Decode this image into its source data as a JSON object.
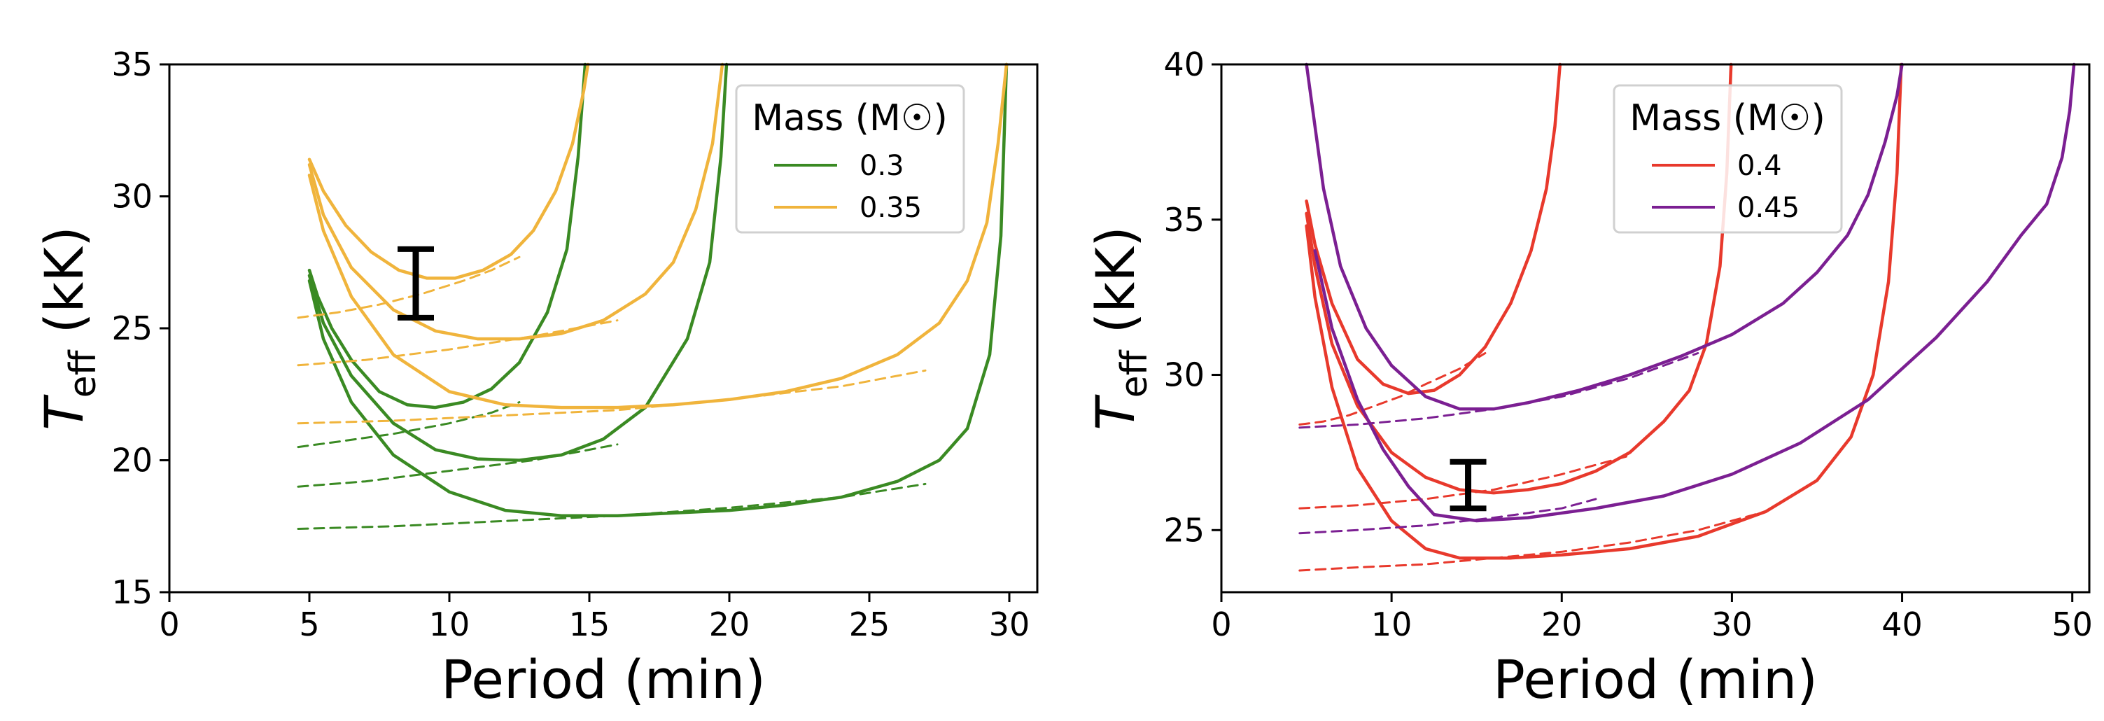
{
  "chart_data": [
    {
      "type": "line",
      "panel": "left",
      "title": "",
      "xlabel": "Period (min)",
      "ylabel": "T_eff (kK)",
      "xlim": [
        0,
        31
      ],
      "ylim": [
        15,
        35
      ],
      "xticks": [
        "0",
        "5",
        "10",
        "15",
        "20",
        "25",
        "30"
      ],
      "yticks": [
        "15",
        "20",
        "25",
        "30",
        "35"
      ],
      "legend": {
        "title": "Mass (M☉)",
        "location": "top-right",
        "entries": [
          {
            "label": "0.3",
            "color": "#3a8a23"
          },
          {
            "label": "0.35",
            "color": "#f0b43c"
          }
        ]
      },
      "series": [
        {
          "name": "0.3",
          "style": "solid",
          "color": "#3a8a23",
          "x": [
            5,
            5.3,
            5.8,
            6.5,
            7.5,
            8.5,
            9.5,
            10.5,
            11.5,
            12.5,
            13.5,
            14.2,
            14.6,
            14.85
          ],
          "y": [
            27.2,
            26.2,
            25.0,
            23.8,
            22.6,
            22.1,
            22.0,
            22.2,
            22.7,
            23.7,
            25.6,
            28.0,
            31.5,
            35.0
          ]
        },
        {
          "name": "0.3",
          "style": "solid",
          "color": "#3a8a23",
          "x": [
            5,
            5.5,
            6.5,
            8,
            9.5,
            11,
            12.5,
            14,
            15.5,
            17,
            18.5,
            19.3,
            19.7,
            19.9
          ],
          "y": [
            27.0,
            25.2,
            23.2,
            21.4,
            20.4,
            20.05,
            20.0,
            20.2,
            20.8,
            22.0,
            24.6,
            27.5,
            31.5,
            35.0
          ]
        },
        {
          "name": "0.3",
          "style": "solid",
          "color": "#3a8a23",
          "x": [
            5,
            5.5,
            6.5,
            8,
            10,
            12,
            14,
            16,
            18,
            20,
            22,
            24,
            26,
            27.5,
            28.5,
            29.3,
            29.7,
            29.9
          ],
          "y": [
            26.8,
            24.6,
            22.2,
            20.2,
            18.8,
            18.1,
            17.9,
            17.9,
            18.0,
            18.1,
            18.3,
            18.6,
            19.2,
            20.0,
            21.2,
            24.0,
            28.5,
            35.0
          ]
        },
        {
          "name": "0.3",
          "style": "dashed",
          "color": "#3a8a23",
          "x": [
            4.6,
            6,
            8,
            10,
            11.5,
            12.5
          ],
          "y": [
            20.5,
            20.7,
            21.0,
            21.4,
            21.8,
            22.2
          ]
        },
        {
          "name": "0.3",
          "style": "dashed",
          "color": "#3a8a23",
          "x": [
            4.6,
            7,
            10,
            13,
            16
          ],
          "y": [
            19.0,
            19.2,
            19.6,
            20.0,
            20.6
          ]
        },
        {
          "name": "0.3",
          "style": "dashed",
          "color": "#3a8a23",
          "x": [
            4.6,
            8,
            12,
            16,
            20,
            24,
            27
          ],
          "y": [
            17.4,
            17.5,
            17.7,
            17.9,
            18.2,
            18.6,
            19.1
          ]
        },
        {
          "name": "0.35",
          "style": "solid",
          "color": "#f0b43c",
          "x": [
            5,
            5.5,
            6.3,
            7.2,
            8.2,
            9.2,
            10.2,
            11.2,
            12.2,
            13,
            13.8,
            14.4,
            14.8,
            14.95
          ],
          "y": [
            31.4,
            30.2,
            28.9,
            27.9,
            27.2,
            26.9,
            26.9,
            27.2,
            27.8,
            28.7,
            30.2,
            32.0,
            34.0,
            35.0
          ]
        },
        {
          "name": "0.35",
          "style": "solid",
          "color": "#f0b43c",
          "x": [
            5,
            5.5,
            6.5,
            8,
            9.5,
            11,
            12.5,
            14,
            15.5,
            17,
            18,
            18.8,
            19.4,
            19.75
          ],
          "y": [
            31.2,
            29.3,
            27.3,
            25.7,
            24.9,
            24.6,
            24.6,
            24.8,
            25.3,
            26.3,
            27.5,
            29.5,
            32.0,
            35.0
          ]
        },
        {
          "name": "0.35",
          "style": "solid",
          "color": "#f0b43c",
          "x": [
            5,
            5.5,
            6.5,
            8,
            10,
            12,
            14,
            16,
            18,
            20,
            22,
            24,
            26,
            27.5,
            28.5,
            29.2,
            29.6,
            29.9
          ],
          "y": [
            30.8,
            28.7,
            26.2,
            24.0,
            22.6,
            22.1,
            22.0,
            22.0,
            22.1,
            22.3,
            22.6,
            23.1,
            24.0,
            25.2,
            26.8,
            29.0,
            32.0,
            35.0
          ]
        },
        {
          "name": "0.35",
          "style": "dashed",
          "color": "#f0b43c",
          "x": [
            4.6,
            6,
            7.5,
            9,
            10.5,
            11.5,
            12.5
          ],
          "y": [
            25.4,
            25.6,
            25.9,
            26.3,
            26.8,
            27.2,
            27.7
          ]
        },
        {
          "name": "0.35",
          "style": "dashed",
          "color": "#f0b43c",
          "x": [
            4.6,
            7,
            10,
            13,
            16
          ],
          "y": [
            23.6,
            23.8,
            24.2,
            24.7,
            25.3
          ]
        },
        {
          "name": "0.35",
          "style": "dashed",
          "color": "#f0b43c",
          "x": [
            4.6,
            8,
            12,
            16,
            20,
            24,
            27
          ],
          "y": [
            21.4,
            21.5,
            21.7,
            21.9,
            22.3,
            22.8,
            23.4
          ]
        }
      ],
      "errorbar": {
        "x": 8.8,
        "y_low": 25.4,
        "y_high": 28.0,
        "color": "#000000"
      }
    },
    {
      "type": "line",
      "panel": "right",
      "title": "",
      "xlabel": "Period (min)",
      "ylabel": "T_eff (kK)",
      "xlim": [
        0,
        51
      ],
      "ylim": [
        23,
        40
      ],
      "xticks": [
        "0",
        "10",
        "20",
        "30",
        "40",
        "50"
      ],
      "yticks": [
        "25",
        "30",
        "35",
        "40"
      ],
      "legend": {
        "title": "Mass (M☉)",
        "location": "top-center",
        "entries": [
          {
            "label": "0.4",
            "color": "#e8392c"
          },
          {
            "label": "0.45",
            "color": "#7b1f92"
          }
        ]
      },
      "series": [
        {
          "name": "0.4",
          "style": "solid",
          "color": "#e8392c",
          "x": [
            5,
            5.5,
            6.5,
            8,
            9.5,
            11,
            12.5,
            14,
            15.5,
            17,
            18.2,
            19.1,
            19.6,
            19.9
          ],
          "y": [
            35.6,
            34.2,
            32.3,
            30.5,
            29.7,
            29.4,
            29.5,
            30.0,
            30.9,
            32.3,
            34.0,
            36.0,
            38.0,
            40.0
          ]
        },
        {
          "name": "0.4",
          "style": "solid",
          "color": "#e8392c",
          "x": [
            5,
            5.5,
            6.5,
            8,
            10,
            12,
            14,
            16,
            18,
            20,
            22,
            24,
            26,
            27.5,
            28.5,
            29.3,
            29.7,
            29.95
          ],
          "y": [
            35.2,
            33.5,
            31.0,
            29.0,
            27.5,
            26.7,
            26.3,
            26.2,
            26.3,
            26.5,
            26.9,
            27.5,
            28.5,
            29.5,
            31.0,
            33.5,
            36.5,
            40.0
          ]
        },
        {
          "name": "0.4",
          "style": "solid",
          "color": "#e8392c",
          "x": [
            5,
            5.5,
            6.5,
            8,
            10,
            12,
            14,
            17,
            20,
            24,
            28,
            32,
            35,
            37,
            38.3,
            39.2,
            39.7,
            39.95
          ],
          "y": [
            34.8,
            32.5,
            29.6,
            27.0,
            25.3,
            24.4,
            24.1,
            24.1,
            24.2,
            24.4,
            24.8,
            25.6,
            26.6,
            28.0,
            30.0,
            33.0,
            36.5,
            40.0
          ]
        },
        {
          "name": "0.4",
          "style": "dashed",
          "color": "#e8392c",
          "x": [
            4.6,
            6,
            7.5,
            9,
            10.5,
            12,
            14,
            15.5
          ],
          "y": [
            28.4,
            28.5,
            28.7,
            29.0,
            29.3,
            29.7,
            30.2,
            30.7
          ]
        },
        {
          "name": "0.4",
          "style": "dashed",
          "color": "#e8392c",
          "x": [
            4.6,
            8,
            12,
            16,
            20,
            24
          ],
          "y": [
            25.7,
            25.8,
            26.0,
            26.3,
            26.8,
            27.4
          ]
        },
        {
          "name": "0.4",
          "style": "dashed",
          "color": "#e8392c",
          "x": [
            4.6,
            8,
            12,
            16,
            20,
            24,
            28,
            32
          ],
          "y": [
            23.7,
            23.8,
            23.9,
            24.1,
            24.3,
            24.6,
            25.0,
            25.6
          ]
        },
        {
          "name": "0.45",
          "style": "solid",
          "color": "#7b1f92",
          "x": [
            5,
            6,
            7,
            8.5,
            10,
            12,
            14,
            16,
            18,
            21,
            24,
            27,
            30,
            33,
            35,
            36.8,
            38,
            39,
            39.7,
            40.0
          ],
          "y": [
            40.0,
            36.0,
            33.5,
            31.5,
            30.3,
            29.3,
            28.9,
            28.9,
            29.1,
            29.5,
            30.0,
            30.6,
            31.3,
            32.3,
            33.3,
            34.5,
            35.8,
            37.5,
            39.0,
            40.0
          ]
        },
        {
          "name": "0.45",
          "style": "solid",
          "color": "#7b1f92",
          "x": [
            5.5,
            6.5,
            8,
            9.5,
            11,
            12.5,
            15,
            18,
            22,
            26,
            30,
            34,
            38,
            42,
            45,
            47,
            48.5,
            49.4,
            49.85,
            50.1
          ],
          "y": [
            34.0,
            31.5,
            29.2,
            27.6,
            26.4,
            25.5,
            25.3,
            25.4,
            25.7,
            26.1,
            26.8,
            27.8,
            29.2,
            31.2,
            33.0,
            34.5,
            35.5,
            37.0,
            38.5,
            40.0
          ]
        },
        {
          "name": "0.45",
          "style": "dashed",
          "color": "#7b1f92",
          "x": [
            4.6,
            8,
            12,
            16,
            20,
            24,
            28
          ],
          "y": [
            28.3,
            28.4,
            28.6,
            28.9,
            29.3,
            29.9,
            30.7
          ]
        },
        {
          "name": "0.45",
          "style": "dashed",
          "color": "#7b1f92",
          "x": [
            4.6,
            8,
            12,
            16,
            20,
            22
          ],
          "y": [
            24.9,
            25.0,
            25.15,
            25.4,
            25.7,
            26.0
          ]
        }
      ],
      "errorbar": {
        "x": 14.5,
        "y_low": 25.7,
        "y_high": 27.2,
        "color": "#000000"
      }
    }
  ]
}
